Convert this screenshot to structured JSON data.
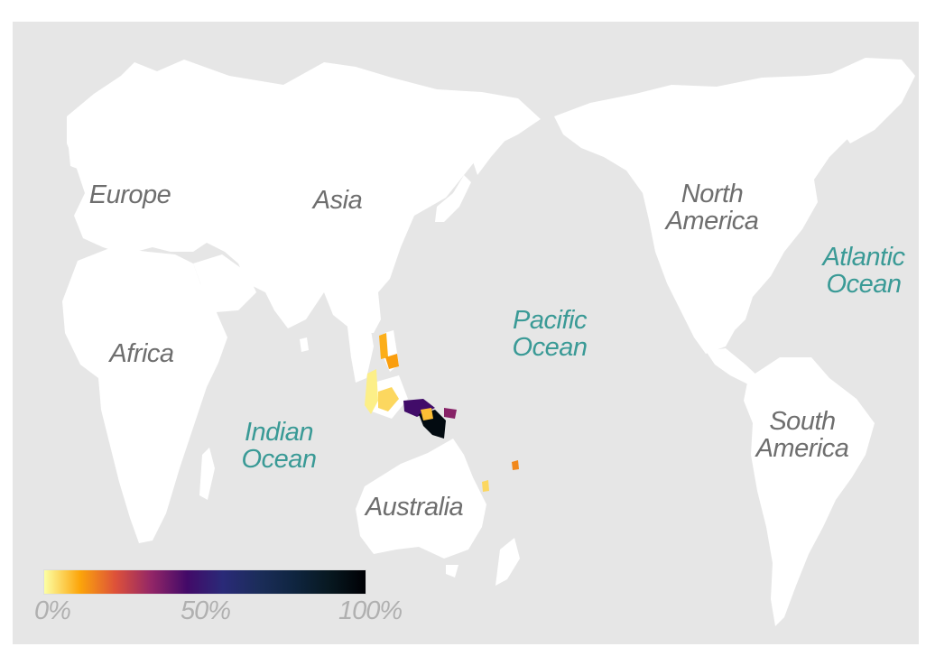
{
  "map": {
    "continent_labels": [
      "Europe",
      "Asia",
      "Africa",
      "North\nAmerica",
      "South\nAmerica",
      "Australia"
    ],
    "ocean_labels": [
      "Indian\nOcean",
      "Pacific\nOcean",
      "Atlantic\nOcean"
    ],
    "colors": {
      "background": "#e6e6e6",
      "land": "#ffffff",
      "continent_label": "#6e6e6e",
      "ocean_label": "#3a9a96"
    }
  },
  "legend": {
    "ticks": [
      "0%",
      "50%",
      "100%"
    ],
    "colorscale": [
      "#fcffa4",
      "#fca50a",
      "#dd513a",
      "#932667",
      "#420a68",
      "#2a2a78",
      "#1b2d5a",
      "#0f2540",
      "#071820",
      "#000004"
    ]
  },
  "heat_patches": [
    {
      "region": "western-island",
      "value": 0.02
    },
    {
      "region": "borneo-sulawesi",
      "value": 0.05
    },
    {
      "region": "philippines",
      "value": 0.1
    },
    {
      "region": "north-islands",
      "value": 0.12
    },
    {
      "region": "new-guinea-west",
      "value": 0.45
    },
    {
      "region": "new-guinea-core",
      "value": 0.95
    },
    {
      "region": "new-guinea-hotspot",
      "value": 0.08
    },
    {
      "region": "solomon-islands",
      "value": 0.35
    },
    {
      "region": "pacific-east-islands",
      "value": 0.15
    },
    {
      "region": "vanuatu",
      "value": 0.05
    }
  ]
}
